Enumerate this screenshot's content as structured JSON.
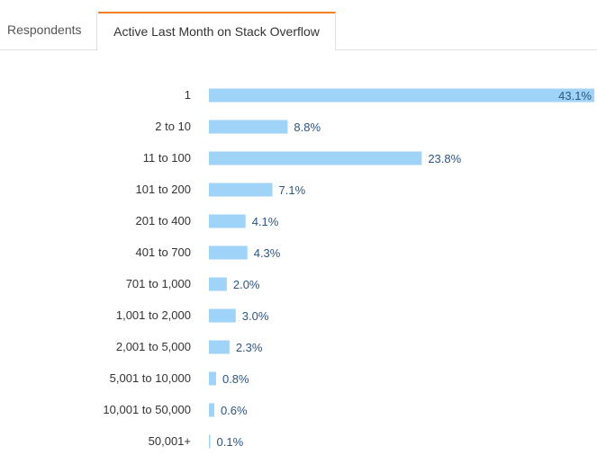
{
  "tabs": [
    {
      "label": "Respondents",
      "active": false
    },
    {
      "label": "Active Last Month on Stack Overflow",
      "active": true
    }
  ],
  "colors": {
    "bar": "#9fd3f7",
    "value_text": "#2c5580",
    "active_tab_accent": "#f48024"
  },
  "chart_data": {
    "type": "bar",
    "orientation": "horizontal",
    "categories": [
      "1",
      "2 to 10",
      "11 to 100",
      "101 to 200",
      "201 to 400",
      "401 to 700",
      "701 to 1,000",
      "1,001 to 2,000",
      "2,001 to 5,000",
      "5,001 to 10,000",
      "10,001 to 50,000",
      "50,001+"
    ],
    "values": [
      43.1,
      8.8,
      23.8,
      7.1,
      4.1,
      4.3,
      2.0,
      3.0,
      2.3,
      0.8,
      0.6,
      0.1
    ],
    "value_labels": [
      "43.1%",
      "8.8%",
      "23.8%",
      "7.1%",
      "4.1%",
      "4.3%",
      "2.0%",
      "3.0%",
      "2.3%",
      "0.8%",
      "0.6%",
      "0.1%"
    ],
    "title": "",
    "xlabel": "",
    "ylabel": "",
    "grid": false
  }
}
